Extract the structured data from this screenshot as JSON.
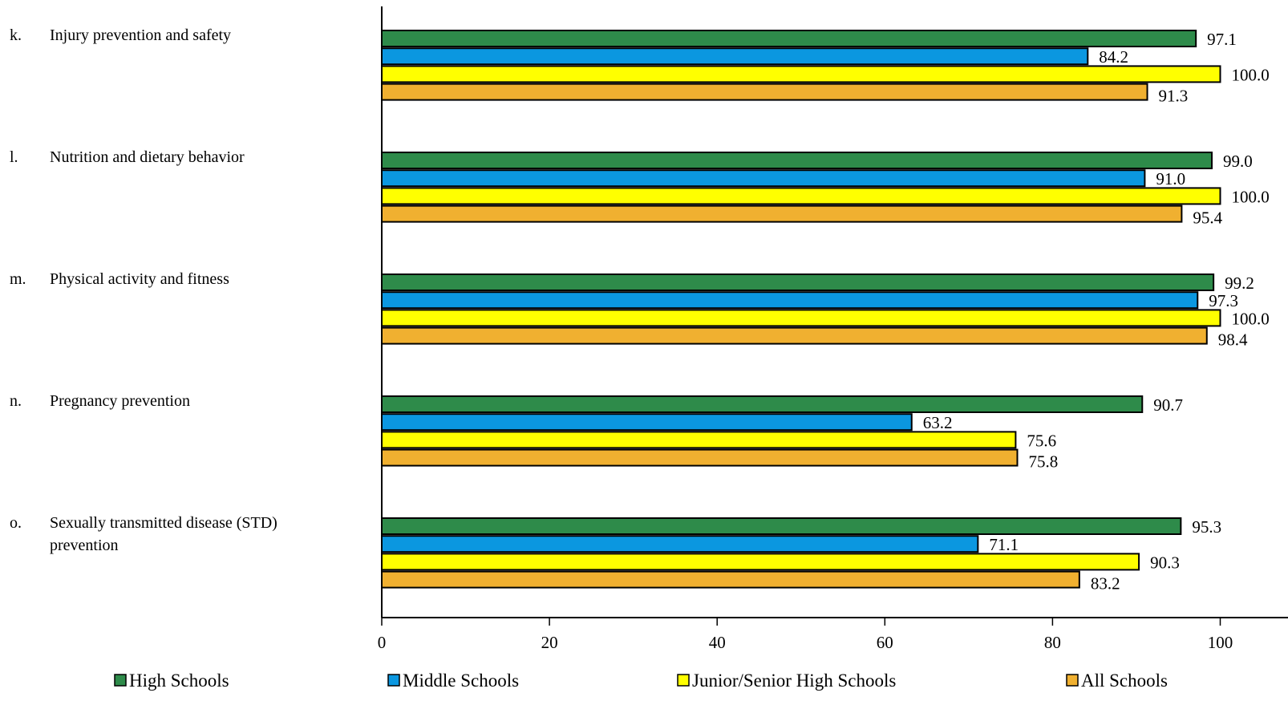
{
  "chart_data": {
    "type": "bar",
    "orientation": "horizontal",
    "title": "",
    "xlabel": "",
    "ylabel": "",
    "xlim": [
      0,
      108
    ],
    "xticks": [
      0,
      20,
      40,
      60,
      80,
      100
    ],
    "grid": false,
    "legend_position": "bottom",
    "categories": [
      {
        "letter": "k.",
        "label": "Injury prevention and safety"
      },
      {
        "letter": "l.",
        "label": "Nutrition and dietary behavior"
      },
      {
        "letter": "m.",
        "label": "Physical activity and fitness"
      },
      {
        "letter": "n.",
        "label": "Pregnancy prevention"
      },
      {
        "letter": "o.",
        "label": "Sexually transmitted disease (STD) prevention"
      }
    ],
    "series": [
      {
        "name": "High Schools",
        "color": "#2e8b4a",
        "values": [
          97.1,
          99.0,
          99.2,
          90.7,
          95.3
        ],
        "labels": [
          "97.1",
          "99.0",
          "99.2",
          "90.7",
          "95.3"
        ]
      },
      {
        "name": "Middle Schools",
        "color": "#0b97e0",
        "values": [
          84.2,
          91.0,
          97.3,
          63.2,
          71.1
        ],
        "labels": [
          "84.2",
          "91.0",
          "97.3",
          "63.2",
          "71.1"
        ]
      },
      {
        "name": "Junior/Senior High Schools",
        "color": "#ffff00",
        "values": [
          100.0,
          100.0,
          100.0,
          75.6,
          90.3
        ],
        "labels": [
          "100.0",
          "100.0",
          "100.0",
          "75.6",
          "90.3"
        ]
      },
      {
        "name": "All Schools",
        "color": "#f0b030",
        "values": [
          91.3,
          95.4,
          98.4,
          75.8,
          83.2
        ],
        "labels": [
          "91.3",
          "95.4",
          "98.4",
          "75.8",
          "83.2"
        ]
      }
    ]
  }
}
